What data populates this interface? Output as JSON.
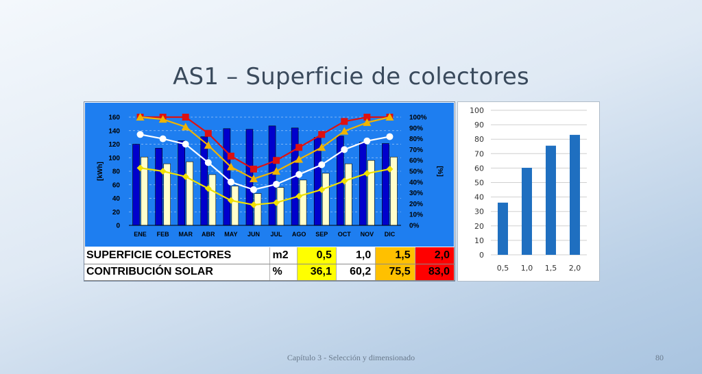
{
  "slide": {
    "title": "AS1 – Superficie de colectores",
    "footer": "Capítulo 3 - Selección y dimensionado",
    "page": "80"
  },
  "table": {
    "rows": [
      {
        "label": "SUPERFICIE COLECTORES",
        "unit": "m2",
        "values": [
          "0,5",
          "1,0",
          "1,5",
          "2,0"
        ]
      },
      {
        "label": "CONTRIBUCIÓN SOLAR",
        "unit": "%",
        "values": [
          "36,1",
          "60,2",
          "75,5",
          "83,0"
        ]
      }
    ],
    "colors": [
      "#ffff00",
      "#ffffff",
      "#ffc000",
      "#ff0000"
    ]
  },
  "chart_data": [
    {
      "type": "bar",
      "categories": [
        "ENE",
        "FEB",
        "MAR",
        "ABR",
        "MAY",
        "JUN",
        "JUL",
        "AGO",
        "SEP",
        "OCT",
        "NOV",
        "DIC"
      ],
      "ylabel": "[kWh]",
      "y2label": "[%]",
      "ylim": [
        0,
        160
      ],
      "yticks": [
        "0",
        "20",
        "40",
        "60",
        "80",
        "100",
        "120",
        "140",
        "160"
      ],
      "y2lim": [
        0,
        100
      ],
      "y2ticks": [
        "0%",
        "10%",
        "20%",
        "30%",
        "40%",
        "50%",
        "60%",
        "70%",
        "80%",
        "90%",
        "100%"
      ],
      "grid": true,
      "background": "#1e7ef0",
      "bar_series": [
        {
          "color": "#0000cc",
          "values": [
            120,
            114,
            125,
            131,
            143,
            142,
            147,
            144,
            130,
            132,
            123,
            121
          ]
        },
        {
          "color": "#ffffcc",
          "values": [
            101,
            91,
            94,
            75,
            58,
            47,
            56,
            67,
            77,
            91,
            96,
            101
          ]
        }
      ],
      "line_series": [
        {
          "color": "#dd1111",
          "marker": "square",
          "values": [
            100,
            100,
            100,
            85,
            64,
            52,
            60,
            72,
            84,
            96,
            100,
            100
          ]
        },
        {
          "color": "#f0b400",
          "marker": "triangle",
          "values": [
            100,
            98,
            91,
            74,
            54,
            43,
            50,
            61,
            72,
            87,
            95,
            100
          ]
        },
        {
          "color": "#ffffff",
          "marker": "circle",
          "values": [
            84,
            80,
            75,
            58,
            40,
            33,
            38,
            47,
            56,
            70,
            78,
            82
          ]
        },
        {
          "color": "#f0e000",
          "marker": "diamond",
          "values": [
            53,
            50,
            45,
            34,
            23,
            19,
            21,
            27,
            33,
            41,
            48,
            52
          ]
        }
      ]
    },
    {
      "type": "bar",
      "categories": [
        "0,5",
        "1,0",
        "1,5",
        "2,0"
      ],
      "values": [
        36.1,
        60.2,
        75.5,
        83.0
      ],
      "ylim": [
        0,
        100
      ],
      "yticks": [
        "0",
        "10",
        "20",
        "30",
        "40",
        "50",
        "60",
        "70",
        "80",
        "90",
        "100"
      ],
      "grid": true,
      "color": "#1f6fc0"
    }
  ]
}
